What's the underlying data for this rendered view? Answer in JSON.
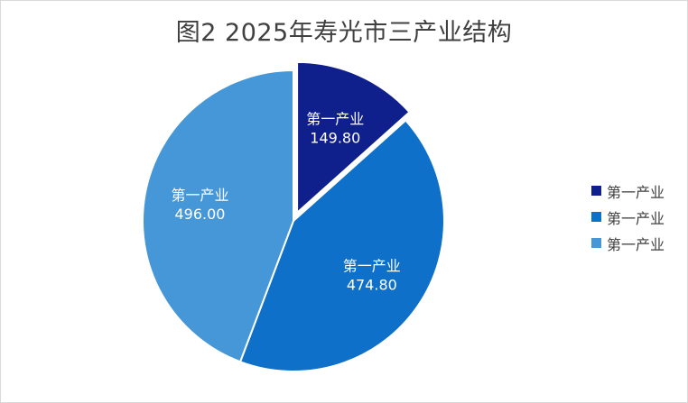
{
  "chart_data": {
    "type": "pie",
    "title": "图2 2025年寿光市三产业结构",
    "slices": [
      {
        "label": "第一产业",
        "value": 149.8,
        "value_text": "149.80",
        "color": "#0f1f8c",
        "exploded": true
      },
      {
        "label": "第一产业",
        "value": 474.8,
        "value_text": "474.80",
        "color": "#0f70c9",
        "exploded": false
      },
      {
        "label": "第一产业",
        "value": 496.0,
        "value_text": "496.00",
        "color": "#4697d8",
        "exploded": false
      }
    ],
    "legend": {
      "position": "right",
      "entries": [
        "第一产业",
        "第一产业",
        "第一产业"
      ]
    }
  }
}
